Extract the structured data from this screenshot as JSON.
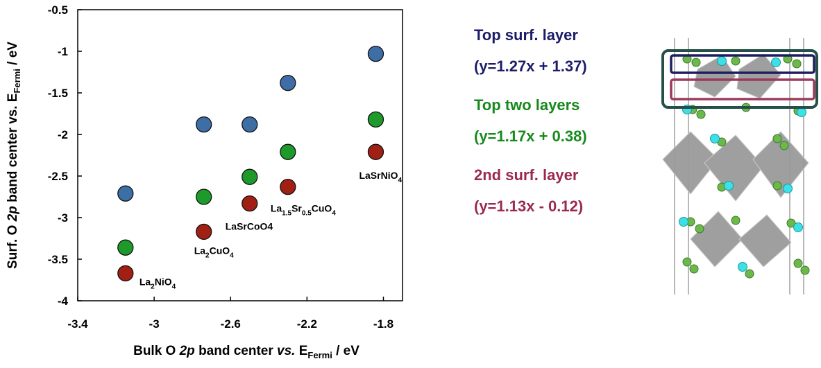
{
  "chart_data": {
    "type": "scatter",
    "x_label": [
      "Bulk O ",
      "2p",
      " band center ",
      "vs.",
      " E",
      "Fermi",
      " / eV"
    ],
    "y_label": [
      "Surf. O ",
      "2p",
      " band center vs. E",
      "Fermi",
      " / eV"
    ],
    "x": [
      -3.15,
      -2.74,
      -2.5,
      -2.3,
      -1.84
    ],
    "series": [
      {
        "name": "Top surf. layer",
        "fit": "(y=1.27x + 1.37)",
        "color": "#3e6ea6",
        "label_color": "#1c1c68",
        "values": [
          -2.71,
          -1.88,
          -1.88,
          -1.38,
          -1.03
        ]
      },
      {
        "name": "Top two layers",
        "fit": "(y=1.17x + 0.38)",
        "color": "#1d9a2a",
        "label_color": "#178a1d",
        "values": [
          -3.36,
          -2.75,
          -2.51,
          -2.21,
          -1.82
        ]
      },
      {
        "name": "2nd surf. layer",
        "fit": "(y=1.13x - 0.12)",
        "color": "#a21f14",
        "label_color": "#9a2a4c",
        "values": [
          -3.67,
          -3.17,
          -2.83,
          -2.63,
          -2.21
        ]
      }
    ],
    "point_labels": [
      [
        "La",
        "2",
        "NiO",
        "4"
      ],
      [
        "La",
        "2",
        "CuO",
        "4"
      ],
      [
        "LaSrCoO4"
      ],
      [
        "La",
        "1.5",
        "Sr",
        "0.5",
        "CuO",
        "4"
      ],
      [
        "LaSrNiO",
        "4"
      ]
    ],
    "xlim": [
      -3.4,
      -1.7
    ],
    "ylim": [
      -4,
      -0.5
    ],
    "xticks": [
      -3.4,
      -3,
      -2.6,
      -2.2,
      -1.8
    ],
    "yticks": [
      -0.5,
      -1,
      -1.5,
      -2,
      -2.5,
      -3,
      -3.5,
      -4
    ],
    "grid": false
  }
}
